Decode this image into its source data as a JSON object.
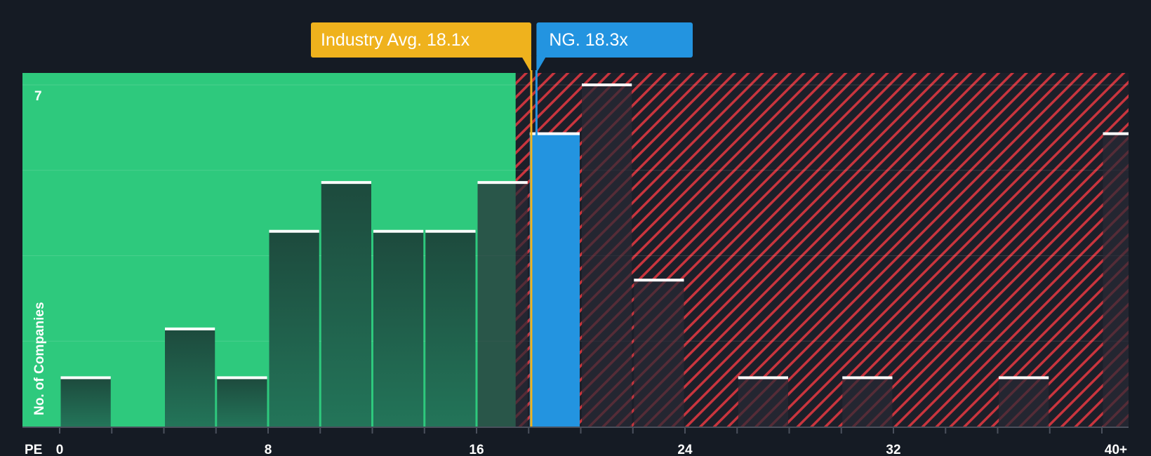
{
  "chart_data": {
    "type": "bar",
    "title": "",
    "xlabel": "PE",
    "ylabel": "No. of Companies",
    "ylim": [
      0,
      7
    ],
    "xlim": [
      0,
      41
    ],
    "y_tick_label": "7",
    "x_ticks": [
      {
        "value": 0,
        "label": "0"
      },
      {
        "value": 8,
        "label": "8"
      },
      {
        "value": 16,
        "label": "16"
      },
      {
        "value": 24,
        "label": "24"
      },
      {
        "value": 32,
        "label": "32"
      },
      {
        "value": 40,
        "label": "40+"
      }
    ],
    "bins": [
      {
        "start": 0,
        "end": 2,
        "value": 1
      },
      {
        "start": 2,
        "end": 4,
        "value": 0
      },
      {
        "start": 4,
        "end": 6,
        "value": 2
      },
      {
        "start": 6,
        "end": 8,
        "value": 1
      },
      {
        "start": 8,
        "end": 10,
        "value": 4
      },
      {
        "start": 10,
        "end": 12,
        "value": 5
      },
      {
        "start": 12,
        "end": 14,
        "value": 4
      },
      {
        "start": 14,
        "end": 16,
        "value": 4
      },
      {
        "start": 16,
        "end": 18,
        "value": 5
      },
      {
        "start": 18,
        "end": 20,
        "value": 6,
        "highlight": true
      },
      {
        "start": 20,
        "end": 22,
        "value": 7
      },
      {
        "start": 22,
        "end": 24,
        "value": 3
      },
      {
        "start": 24,
        "end": 26,
        "value": 0
      },
      {
        "start": 26,
        "end": 28,
        "value": 1
      },
      {
        "start": 28,
        "end": 30,
        "value": 0
      },
      {
        "start": 30,
        "end": 32,
        "value": 1
      },
      {
        "start": 32,
        "end": 34,
        "value": 0
      },
      {
        "start": 34,
        "end": 36,
        "value": 0
      },
      {
        "start": 36,
        "end": 38,
        "value": 1
      },
      {
        "start": 38,
        "end": 40,
        "value": 0
      },
      {
        "start": 40,
        "end": 42,
        "value": 6
      }
    ],
    "fair_zone_end": 17.5,
    "industry_avg": {
      "value": 18.1,
      "label": "Industry Avg. 18.1x"
    },
    "company": {
      "value": 18.3,
      "label": "NG. 18.3x"
    },
    "colors": {
      "background": "#151b24",
      "green_zone": "#2ec97d",
      "red_hatch": "#c9353e",
      "bar_in_green": "#1d4a3d",
      "bar_in_red": "#2a2c35",
      "highlight_bar": "#2394e0",
      "industry_label": "#efb21d",
      "company_label": "#2394e0",
      "bar_cap": "#ffffff"
    }
  }
}
